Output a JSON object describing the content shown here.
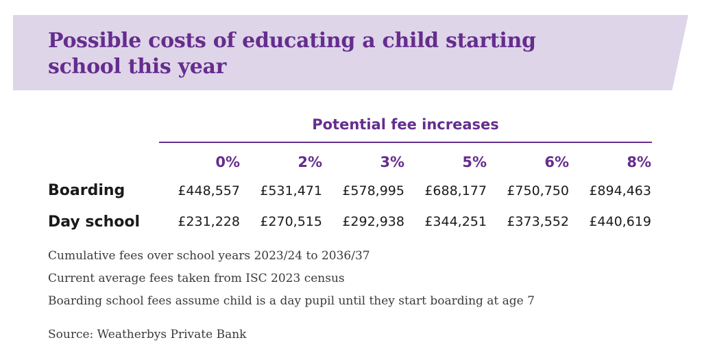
{
  "title": "Possible costs of educating a child starting school this year",
  "colors": {
    "accent": "#652d8e",
    "banner": "#ded5e8",
    "text": "#1a1a1a"
  },
  "chart_data": {
    "type": "table",
    "title": "Possible costs of educating a child starting school this year",
    "group_header": "Potential fee increases",
    "columns": [
      "0%",
      "2%",
      "3%",
      "5%",
      "6%",
      "8%"
    ],
    "rows": [
      {
        "label": "Boarding",
        "values": [
          "£448,557",
          "£531,471",
          "£578,995",
          "£688,177",
          "£750,750",
          "£894,463"
        ]
      },
      {
        "label": "Day school",
        "values": [
          "£231,228",
          "£270,515",
          "£292,938",
          "£344,251",
          "£373,552",
          "£440,619"
        ]
      }
    ]
  },
  "notes": [
    "Cumulative fees over school years 2023/24 to 2036/37",
    "Current average fees taken from ISC 2023 census",
    "Boarding school fees assume child is a day pupil until they start boarding at age 7"
  ],
  "source": "Source: Weatherbys Private Bank"
}
